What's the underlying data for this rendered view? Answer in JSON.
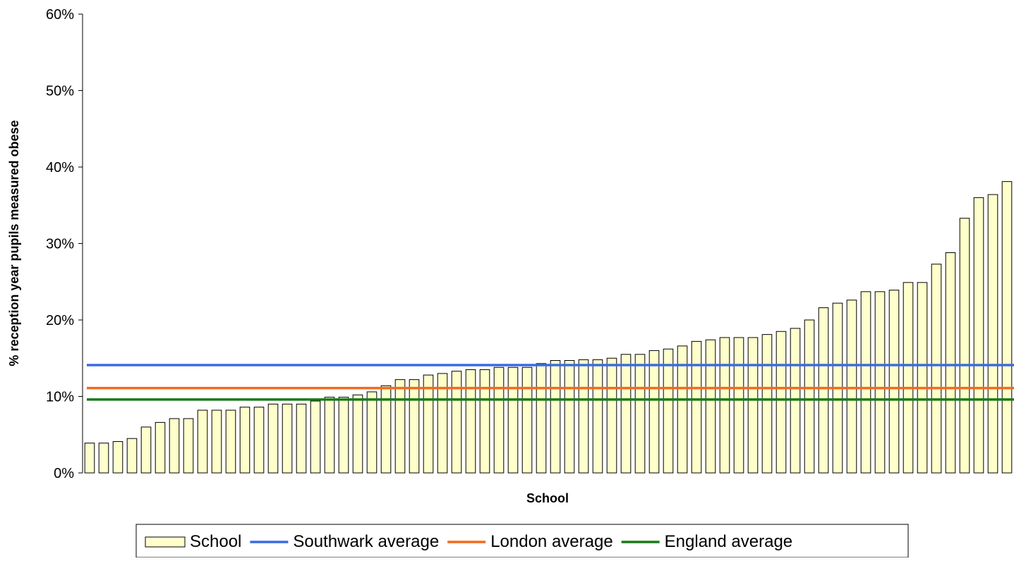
{
  "chart_data": {
    "type": "bar",
    "xlabel": "School",
    "ylabel": "% reception year pupils measured obese",
    "ylim": [
      0,
      60
    ],
    "yticks": [
      "0%",
      "10%",
      "20%",
      "30%",
      "40%",
      "50%",
      "60%"
    ],
    "grid": false,
    "legend_position": "bottom",
    "series": [
      {
        "name": "School",
        "type": "bar",
        "color": "#FFFFCC",
        "values": [
          3.9,
          3.9,
          4.1,
          4.5,
          6.0,
          6.6,
          7.1,
          7.1,
          8.2,
          8.2,
          8.2,
          8.6,
          8.6,
          9.0,
          9.0,
          9.0,
          9.4,
          9.9,
          9.9,
          10.2,
          10.6,
          11.4,
          12.2,
          12.2,
          12.8,
          13.0,
          13.3,
          13.5,
          13.5,
          13.8,
          13.8,
          13.8,
          14.3,
          14.7,
          14.7,
          14.8,
          14.8,
          15.0,
          15.5,
          15.5,
          16.0,
          16.2,
          16.6,
          17.2,
          17.4,
          17.7,
          17.7,
          17.7,
          18.1,
          18.5,
          18.9,
          20.0,
          21.6,
          22.2,
          22.6,
          23.7,
          23.7,
          23.9,
          24.9,
          24.9,
          27.3,
          28.8,
          33.3,
          36.0,
          36.4,
          38.1
        ]
      },
      {
        "name": "Southwark average",
        "type": "line",
        "color": "#3A6BE0",
        "value": 14.1
      },
      {
        "name": "London average",
        "type": "line",
        "color": "#F26B1D",
        "value": 11.1
      },
      {
        "name": "England average",
        "type": "line",
        "color": "#1A7A1A",
        "value": 9.6
      }
    ]
  }
}
